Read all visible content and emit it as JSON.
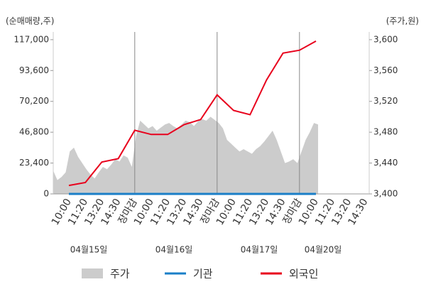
{
  "chart_data": {
    "type": "line",
    "y_axis_label": "(순매매량,주)",
    "y2_axis_label": "(주가,원)",
    "categories": [
      "10:00",
      "11:20",
      "13:20",
      "14:30",
      "장마감",
      "10:00",
      "11:20",
      "13:20",
      "14:30",
      "장마감",
      "10:00",
      "11:20",
      "13:20",
      "14:30",
      "장마감",
      "10:00",
      "11:20",
      "13:20",
      "14:30"
    ],
    "category_colors": [
      "#333333",
      "#333333",
      "#333333",
      "#333333",
      "#e8001c",
      "#333333",
      "#333333",
      "#333333",
      "#333333",
      "#e8001c",
      "#333333",
      "#333333",
      "#333333",
      "#333333",
      "#e8001c",
      "#333333",
      "#333333",
      "#333333",
      "#333333"
    ],
    "days": [
      "04월15일",
      "04월16일",
      "04월17일",
      "04월20일"
    ],
    "ylim": [
      0,
      122850
    ],
    "yticks": [
      0,
      {
        "value": 23400,
        "label": "23,400"
      },
      {
        "value": 46800,
        "label": "46,800"
      },
      {
        "value": 70200,
        "label": "70,200"
      },
      {
        "value": 93600,
        "label": "93,600"
      },
      {
        "value": 117000,
        "label": "117,000"
      }
    ],
    "y2lim": [
      3400,
      3610
    ],
    "y2ticks": [
      {
        "value": 3400,
        "label": "3,400"
      },
      {
        "value": 3440,
        "label": "3,440"
      },
      {
        "value": 3480,
        "label": "3,480"
      },
      {
        "value": 3520,
        "label": "3,520"
      },
      {
        "value": 3560,
        "label": "3,560"
      },
      {
        "value": 3600,
        "label": "3,600"
      }
    ],
    "price": {
      "name": "주가",
      "color": "#cccccc",
      "axis": "y2",
      "values": [
        3430,
        3418,
        3422,
        3428,
        3455,
        3460,
        3448,
        3440,
        3432,
        3425,
        3420,
        3428,
        3435,
        3432,
        3438,
        3445,
        3442,
        3450,
        3447,
        3435,
        3475,
        3495,
        3490,
        3485,
        3488,
        3482,
        3486,
        3490,
        3492,
        3488,
        3485,
        3490,
        3495,
        3493,
        3488,
        3494,
        3497,
        3495,
        3500,
        3496,
        3492,
        3485,
        3470,
        3465,
        3460,
        3455,
        3458,
        3455,
        3452,
        3458,
        3462,
        3468,
        3475,
        3482,
        3470,
        3455,
        3440,
        3442,
        3445,
        3440,
        3455,
        3470,
        3480,
        3492,
        3490
      ]
    },
    "series": [
      {
        "name": "기관",
        "color": "#1a7fc8",
        "values": [
          0,
          0,
          0,
          0,
          0,
          0,
          0,
          0,
          0,
          0,
          0,
          0,
          0,
          0,
          0,
          0,
          null,
          null,
          null
        ]
      },
      {
        "name": "외국인",
        "color": "#e8001c",
        "values": [
          6400,
          8600,
          24200,
          26800,
          48300,
          45100,
          45100,
          52600,
          56400,
          75100,
          63300,
          60100,
          86400,
          106800,
          109000,
          115900,
          null,
          null,
          null
        ]
      }
    ]
  }
}
